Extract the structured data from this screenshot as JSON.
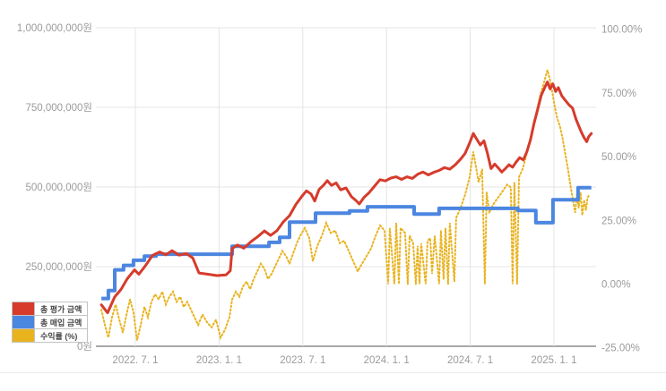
{
  "chart_data": {
    "type": "line",
    "title": "",
    "grid": true,
    "legend_position": "bottom-left",
    "x_axis": {
      "ticks": [
        {
          "t": 2022.5,
          "label": "2022. 7. 1"
        },
        {
          "t": 2023.0,
          "label": "2023. 1. 1"
        },
        {
          "t": 2023.5,
          "label": "2023. 7. 1"
        },
        {
          "t": 2024.0,
          "label": "2024. 1. 1"
        },
        {
          "t": 2024.5,
          "label": "2024. 7. 1"
        },
        {
          "t": 2025.0,
          "label": "2025. 1. 1"
        }
      ]
    },
    "won_axis": {
      "range_millions": [
        0,
        1000
      ],
      "ticks": [
        {
          "v": 1000,
          "label": "1,000,000,000원"
        },
        {
          "v": 750,
          "label": "750,000,000원"
        },
        {
          "v": 500,
          "label": "500,000,000원"
        },
        {
          "v": 250,
          "label": "250,000,000원"
        },
        {
          "v": 0,
          "label": "0원"
        }
      ]
    },
    "pct_axis": {
      "range": [
        -25,
        100
      ],
      "ticks": [
        {
          "p": 100,
          "label": "100.00%"
        },
        {
          "p": 75,
          "label": "75.00%"
        },
        {
          "p": 50,
          "label": "50.00%"
        },
        {
          "p": 25,
          "label": "25.00%"
        },
        {
          "p": 0,
          "label": "0.00%"
        },
        {
          "p": -25,
          "label": "-25.00%"
        }
      ]
    },
    "legend": [
      {
        "name": "총 평가 금액",
        "color": "#d63b2c",
        "axis": "won",
        "style": "solid"
      },
      {
        "name": "총 매입 금액",
        "color": "#4b86e0",
        "axis": "won",
        "style": "step"
      },
      {
        "name": "수익률 (%)",
        "color": "#e9b320",
        "axis": "pct",
        "style": "dotted"
      }
    ],
    "series": {
      "evaluation_millions_krw": [
        [
          2022.297,
          130
        ],
        [
          2022.334,
          105
        ],
        [
          2022.377,
          155
        ],
        [
          2022.414,
          178
        ],
        [
          2022.452,
          212
        ],
        [
          2022.495,
          240
        ],
        [
          2022.521,
          226
        ],
        [
          2022.559,
          252
        ],
        [
          2022.602,
          285
        ],
        [
          2022.645,
          296
        ],
        [
          2022.682,
          287
        ],
        [
          2022.719,
          300
        ],
        [
          2022.762,
          286
        ],
        [
          2022.805,
          291
        ],
        [
          2022.843,
          277
        ],
        [
          2022.88,
          230
        ],
        [
          2022.934,
          226
        ],
        [
          2022.987,
          222
        ],
        [
          2023.041,
          224
        ],
        [
          2023.067,
          237
        ],
        [
          2023.078,
          307
        ],
        [
          2023.11,
          318
        ],
        [
          2023.148,
          308
        ],
        [
          2023.19,
          328
        ],
        [
          2023.233,
          345
        ],
        [
          2023.271,
          362
        ],
        [
          2023.308,
          348
        ],
        [
          2023.346,
          363
        ],
        [
          2023.383,
          390
        ],
        [
          2023.421,
          410
        ],
        [
          2023.458,
          445
        ],
        [
          2023.496,
          472
        ],
        [
          2023.522,
          488
        ],
        [
          2023.549,
          478
        ],
        [
          2023.571,
          456
        ],
        [
          2023.597,
          492
        ],
        [
          2023.624,
          506
        ],
        [
          2023.646,
          520
        ],
        [
          2023.672,
          505
        ],
        [
          2023.699,
          513
        ],
        [
          2023.726,
          491
        ],
        [
          2023.758,
          497
        ],
        [
          2023.79,
          470
        ],
        [
          2023.817,
          458
        ],
        [
          2023.838,
          447
        ],
        [
          2023.865,
          467
        ],
        [
          2023.897,
          483
        ],
        [
          2023.929,
          503
        ],
        [
          2023.961,
          523
        ],
        [
          2023.993,
          519
        ],
        [
          2024.026,
          528
        ],
        [
          2024.058,
          532
        ],
        [
          2024.09,
          524
        ],
        [
          2024.122,
          532
        ],
        [
          2024.154,
          527
        ],
        [
          2024.186,
          540
        ],
        [
          2024.218,
          547
        ],
        [
          2024.25,
          538
        ],
        [
          2024.282,
          546
        ],
        [
          2024.314,
          552
        ],
        [
          2024.346,
          561
        ],
        [
          2024.378,
          556
        ],
        [
          2024.411,
          570
        ],
        [
          2024.443,
          588
        ],
        [
          2024.469,
          605
        ],
        [
          2024.496,
          638
        ],
        [
          2024.518,
          668
        ],
        [
          2024.539,
          650
        ],
        [
          2024.56,
          632
        ],
        [
          2024.582,
          645
        ],
        [
          2024.603,
          606
        ],
        [
          2024.624,
          558
        ],
        [
          2024.646,
          572
        ],
        [
          2024.667,
          560
        ],
        [
          2024.688,
          547
        ],
        [
          2024.71,
          558
        ],
        [
          2024.731,
          570
        ],
        [
          2024.753,
          562
        ],
        [
          2024.774,
          578
        ],
        [
          2024.795,
          592
        ],
        [
          2024.817,
          585
        ],
        [
          2024.838,
          610
        ],
        [
          2024.86,
          648
        ],
        [
          2024.881,
          700
        ],
        [
          2024.902,
          742
        ],
        [
          2024.924,
          788
        ],
        [
          2024.945,
          812
        ],
        [
          2024.961,
          830
        ],
        [
          2024.977,
          808
        ],
        [
          2024.993,
          824
        ],
        [
          2025.01,
          800
        ],
        [
          2025.026,
          812
        ],
        [
          2025.047,
          786
        ],
        [
          2025.068,
          772
        ],
        [
          2025.09,
          758
        ],
        [
          2025.111,
          748
        ],
        [
          2025.132,
          712
        ],
        [
          2025.148,
          692
        ],
        [
          2025.164,
          672
        ],
        [
          2025.18,
          655
        ],
        [
          2025.196,
          642
        ],
        [
          2025.207,
          658
        ],
        [
          2025.223,
          668
        ]
      ],
      "purchase_millions_krw": [
        [
          2022.297,
          150
        ],
        [
          2022.339,
          175
        ],
        [
          2022.377,
          240
        ],
        [
          2022.43,
          254
        ],
        [
          2022.489,
          270
        ],
        [
          2022.554,
          283
        ],
        [
          2022.623,
          289
        ],
        [
          2023.078,
          314
        ],
        [
          2023.298,
          326
        ],
        [
          2023.362,
          342
        ],
        [
          2023.421,
          390
        ],
        [
          2023.576,
          418
        ],
        [
          2023.779,
          425
        ],
        [
          2023.886,
          438
        ],
        [
          2024.165,
          415
        ],
        [
          2024.314,
          433
        ],
        [
          2024.785,
          426
        ],
        [
          2024.892,
          388
        ],
        [
          2024.994,
          460
        ],
        [
          2025.144,
          498
        ],
        [
          2025.223,
          498
        ]
      ],
      "return_pct": [
        [
          2022.297,
          -10
        ],
        [
          2022.318,
          -16
        ],
        [
          2022.339,
          -21
        ],
        [
          2022.361,
          -13
        ],
        [
          2022.382,
          -8
        ],
        [
          2022.404,
          -14
        ],
        [
          2022.425,
          -19
        ],
        [
          2022.447,
          -12
        ],
        [
          2022.468,
          -6
        ],
        [
          2022.489,
          -11
        ],
        [
          2022.51,
          -22
        ],
        [
          2022.532,
          -16
        ],
        [
          2022.554,
          -9
        ],
        [
          2022.575,
          -13
        ],
        [
          2022.596,
          -7
        ],
        [
          2022.618,
          -4
        ],
        [
          2022.639,
          -6
        ],
        [
          2022.661,
          -3
        ],
        [
          2022.682,
          -8
        ],
        [
          2022.703,
          -5
        ],
        [
          2022.725,
          -3
        ],
        [
          2022.746,
          -7
        ],
        [
          2022.768,
          -5
        ],
        [
          2022.789,
          -9
        ],
        [
          2022.81,
          -7
        ],
        [
          2022.832,
          -10
        ],
        [
          2022.853,
          -13
        ],
        [
          2022.875,
          -16
        ],
        [
          2022.901,
          -12
        ],
        [
          2022.928,
          -15
        ],
        [
          2022.955,
          -17
        ],
        [
          2022.982,
          -14
        ],
        [
          2023.009,
          -21
        ],
        [
          2023.035,
          -18
        ],
        [
          2023.062,
          -13
        ],
        [
          2023.078,
          -6
        ],
        [
          2023.1,
          -3
        ],
        [
          2023.121,
          -5
        ],
        [
          2023.142,
          -1
        ],
        [
          2023.164,
          1
        ],
        [
          2023.185,
          -2
        ],
        [
          2023.207,
          2
        ],
        [
          2023.228,
          5
        ],
        [
          2023.249,
          8
        ],
        [
          2023.271,
          6
        ],
        [
          2023.292,
          2
        ],
        [
          2023.314,
          4
        ],
        [
          2023.335,
          7
        ],
        [
          2023.357,
          10
        ],
        [
          2023.378,
          13
        ],
        [
          2023.4,
          11
        ],
        [
          2023.421,
          8
        ],
        [
          2023.442,
          12
        ],
        [
          2023.464,
          16
        ],
        [
          2023.485,
          19
        ],
        [
          2023.512,
          22
        ],
        [
          2023.539,
          18
        ],
        [
          2023.56,
          9
        ],
        [
          2023.587,
          15
        ],
        [
          2023.614,
          19
        ],
        [
          2023.64,
          24
        ],
        [
          2023.667,
          20
        ],
        [
          2023.694,
          21
        ],
        [
          2023.721,
          16
        ],
        [
          2023.747,
          17
        ],
        [
          2023.774,
          13
        ],
        [
          2023.801,
          9
        ],
        [
          2023.828,
          5
        ],
        [
          2023.854,
          8
        ],
        [
          2023.881,
          11
        ],
        [
          2023.908,
          14
        ],
        [
          2023.935,
          19
        ],
        [
          2023.962,
          23
        ],
        [
          2023.988,
          21
        ],
        [
          2024.01,
          0
        ],
        [
          2024.02,
          22
        ],
        [
          2024.047,
          0
        ],
        [
          2024.058,
          24
        ],
        [
          2024.074,
          0
        ],
        [
          2024.084,
          22
        ],
        [
          2024.111,
          20
        ],
        [
          2024.127,
          0
        ],
        [
          2024.138,
          19
        ],
        [
          2024.159,
          16
        ],
        [
          2024.175,
          0
        ],
        [
          2024.186,
          15
        ],
        [
          2024.197,
          0
        ],
        [
          2024.207,
          16
        ],
        [
          2024.234,
          0
        ],
        [
          2024.245,
          17
        ],
        [
          2024.261,
          18
        ],
        [
          2024.272,
          4
        ],
        [
          2024.288,
          19
        ],
        [
          2024.314,
          0
        ],
        [
          2024.325,
          21
        ],
        [
          2024.341,
          2
        ],
        [
          2024.352,
          22
        ],
        [
          2024.368,
          0
        ],
        [
          2024.378,
          24
        ],
        [
          2024.405,
          1
        ],
        [
          2024.416,
          26
        ],
        [
          2024.443,
          30
        ],
        [
          2024.469,
          35
        ],
        [
          2024.496,
          42
        ],
        [
          2024.518,
          52
        ],
        [
          2024.534,
          46
        ],
        [
          2024.55,
          40
        ],
        [
          2024.571,
          45
        ],
        [
          2024.587,
          0
        ],
        [
          2024.598,
          36
        ],
        [
          2024.614,
          28
        ],
        [
          2024.635,
          31
        ],
        [
          2024.656,
          33
        ],
        [
          2024.678,
          35
        ],
        [
          2024.699,
          37
        ],
        [
          2024.72,
          39
        ],
        [
          2024.742,
          38
        ],
        [
          2024.753,
          0
        ],
        [
          2024.764,
          40
        ],
        [
          2024.78,
          0
        ],
        [
          2024.791,
          42
        ],
        [
          2024.812,
          45
        ],
        [
          2024.833,
          50
        ],
        [
          2024.855,
          56
        ],
        [
          2024.876,
          62
        ],
        [
          2024.897,
          68
        ],
        [
          2024.918,
          74
        ],
        [
          2024.94,
          79
        ],
        [
          2024.961,
          84
        ],
        [
          2024.977,
          80
        ],
        [
          2024.988,
          76
        ],
        [
          2025.004,
          70
        ],
        [
          2025.02,
          65
        ],
        [
          2025.036,
          62
        ],
        [
          2025.052,
          57
        ],
        [
          2025.068,
          51
        ],
        [
          2025.084,
          45
        ],
        [
          2025.1,
          38
        ],
        [
          2025.116,
          32
        ],
        [
          2025.127,
          28
        ],
        [
          2025.137,
          35
        ],
        [
          2025.148,
          30
        ],
        [
          2025.159,
          36
        ],
        [
          2025.169,
          27
        ],
        [
          2025.18,
          33
        ],
        [
          2025.191,
          29
        ],
        [
          2025.201,
          34
        ],
        [
          2025.212,
          35
        ]
      ]
    },
    "colors": {
      "grid": "#e4e4e4",
      "axis_line": "#a8a8a8",
      "tick_label": "#9b9b9b"
    }
  }
}
